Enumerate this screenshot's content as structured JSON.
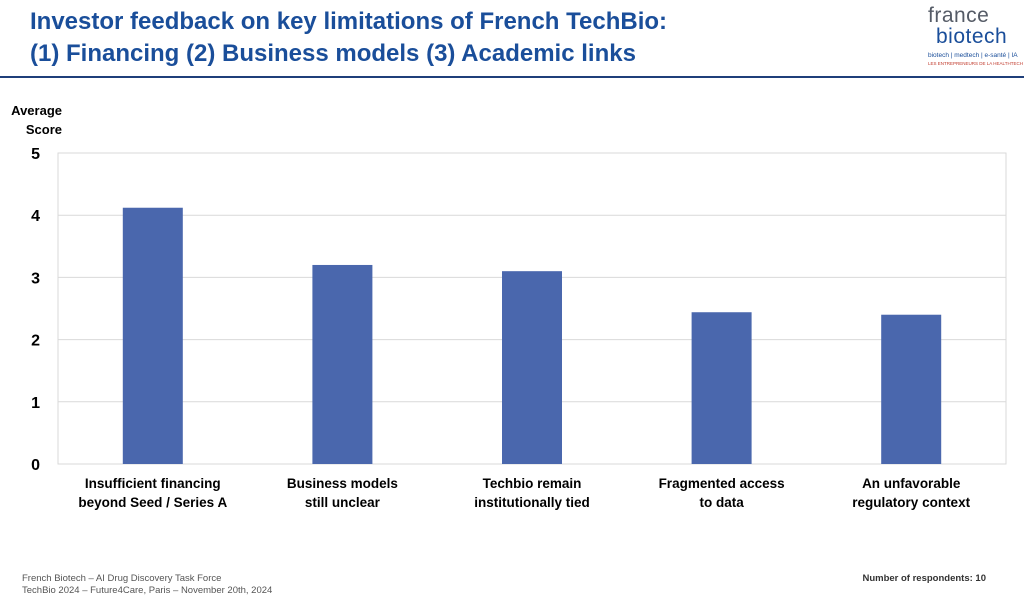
{
  "title": {
    "line1": "Investor feedback on key limitations of French TechBio:",
    "line2": "(1) Financing (2) Business models (3) Academic links"
  },
  "logo": {
    "word1": "france",
    "word2": "biotech",
    "tagline": "biotech | medtech | e-santé | IA",
    "subtagline": "LES ENTREPRENEURS DE LA HEALTHTECH"
  },
  "colors": {
    "title": "#1a4e9a",
    "bar": "#4a67ad",
    "gridline": "#d9d9d9"
  },
  "chart_data": {
    "type": "bar",
    "ylabel": [
      "Average",
      "Score"
    ],
    "ylim": [
      0,
      5
    ],
    "yticks": [
      0,
      1,
      2,
      3,
      4,
      5
    ],
    "grid": true,
    "categories": [
      [
        "Insufficient financing",
        "beyond Seed / Series A"
      ],
      [
        "Business models",
        "still unclear"
      ],
      [
        "Techbio remain",
        "institutionally tied"
      ],
      [
        "Fragmented access",
        "to data"
      ],
      [
        "An unfavorable",
        "regulatory context"
      ]
    ],
    "values": [
      4.12,
      3.2,
      3.1,
      2.44,
      2.4
    ]
  },
  "footer": {
    "line1": "French Biotech – AI Drug Discovery Task Force",
    "line2": "TechBio 2024 – Future4Care, Paris – November 20th, 2024",
    "respondents": "Number of respondents: 10"
  }
}
